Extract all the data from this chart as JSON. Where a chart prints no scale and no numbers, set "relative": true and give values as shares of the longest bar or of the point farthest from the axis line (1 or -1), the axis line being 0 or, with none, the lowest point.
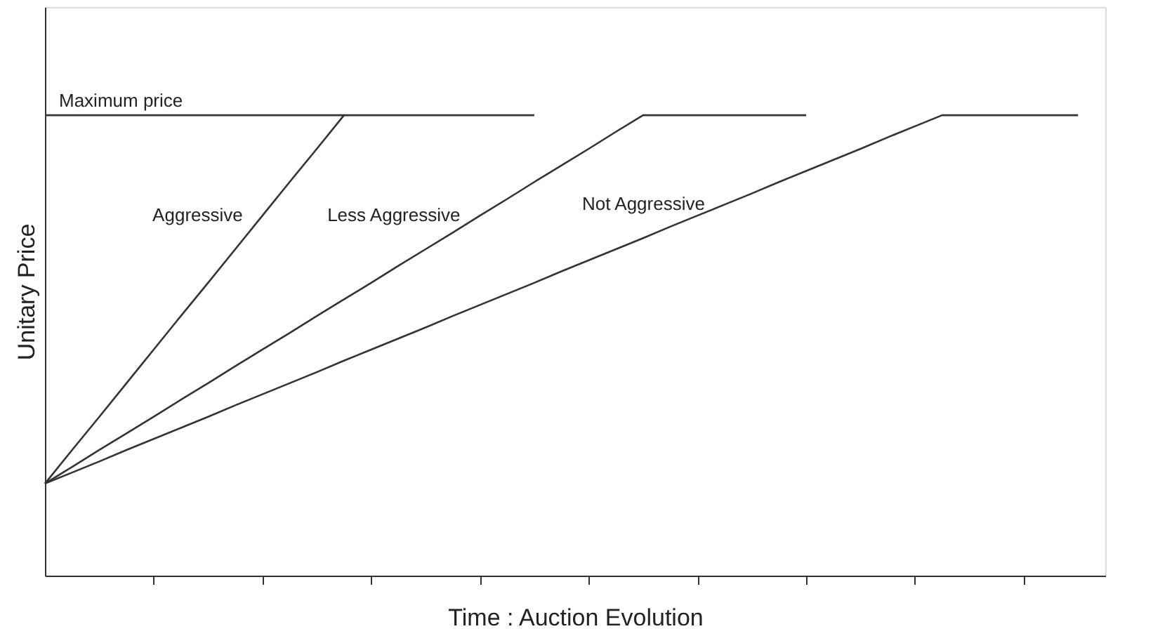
{
  "chart_data": {
    "type": "line",
    "relative": true,
    "xlabel": "Time : Auction Evolution",
    "ylabel": "Unitary Price",
    "categories": [
      null,
      null,
      null,
      null,
      null,
      null,
      null,
      null,
      null,
      null,
      null,
      null,
      null,
      null,
      null,
      null,
      null,
      null,
      null,
      null,
      null,
      null,
      null,
      null,
      null,
      null,
      null,
      null,
      null,
      null,
      null,
      null,
      null,
      null,
      null,
      null,
      null,
      null,
      null,
      null
    ],
    "grid": false,
    "legend": false,
    "marker": "none",
    "line_style": "solid",
    "series": [
      {
        "name": "Maximum price",
        "color": "#333333",
        "values": [
          1,
          1,
          1,
          1,
          1,
          1,
          1,
          1,
          1,
          1,
          1,
          1,
          1,
          1,
          1,
          1,
          1,
          1,
          1,
          null,
          null,
          null,
          null,
          null,
          null,
          null,
          null,
          null,
          null,
          null,
          null,
          null,
          null,
          null,
          null,
          null,
          null,
          null,
          null,
          null
        ]
      },
      {
        "name": "Aggressive",
        "color": "#333333",
        "values": [
          0.2,
          0.273,
          0.345,
          0.418,
          0.491,
          0.564,
          0.636,
          0.709,
          0.782,
          0.855,
          0.927,
          1,
          null,
          null,
          null,
          null,
          null,
          null,
          null,
          null,
          null,
          null,
          null,
          null,
          null,
          null,
          null,
          null,
          null,
          null,
          null,
          null,
          null,
          null,
          null,
          null,
          null,
          null,
          null,
          null
        ]
      },
      {
        "name": "Less Aggressive",
        "color": "#333333",
        "values": [
          0.2,
          0.236,
          0.273,
          0.309,
          0.345,
          0.382,
          0.418,
          0.455,
          0.491,
          0.527,
          0.564,
          0.6,
          0.636,
          0.673,
          0.709,
          0.745,
          0.782,
          0.818,
          0.855,
          0.891,
          0.927,
          0.964,
          1,
          1,
          1,
          1,
          1,
          1,
          1,
          null,
          null,
          null,
          null,
          null,
          null,
          null,
          null,
          null,
          null,
          null
        ]
      },
      {
        "name": "Not Aggressive",
        "color": "#333333",
        "values": [
          0.2,
          0.224,
          0.248,
          0.273,
          0.297,
          0.321,
          0.345,
          0.37,
          0.394,
          0.418,
          0.442,
          0.467,
          0.491,
          0.515,
          0.539,
          0.564,
          0.588,
          0.612,
          0.636,
          0.661,
          0.685,
          0.709,
          0.733,
          0.758,
          0.782,
          0.806,
          0.83,
          0.855,
          0.879,
          0.903,
          0.927,
          0.952,
          0.976,
          1,
          1,
          1,
          1,
          1,
          1,
          null
        ]
      }
    ]
  }
}
